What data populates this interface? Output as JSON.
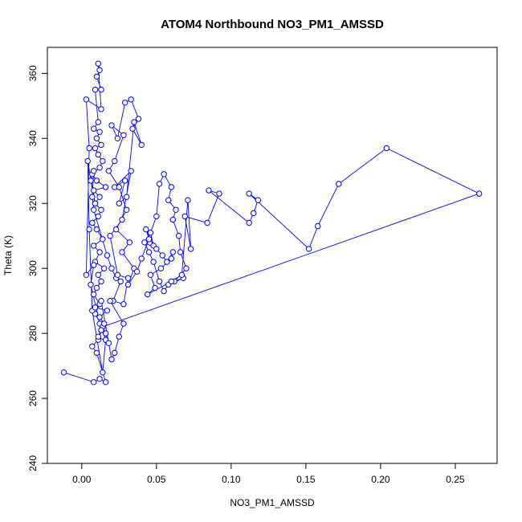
{
  "chart_data": {
    "type": "line",
    "title": "ATOM4 Northbound NO3_PM1_AMSSD",
    "xlabel": "NO3_PM1_AMSSD",
    "ylabel": "Theta (K)",
    "xlim": [
      -0.023,
      0.278
    ],
    "ylim": [
      240,
      368
    ],
    "x_ticks": [
      0.0,
      0.05,
      0.1,
      0.15,
      0.2,
      0.25
    ],
    "x_tick_labels": [
      "0.00",
      "0.05",
      "0.10",
      "0.15",
      "0.20",
      "0.25"
    ],
    "y_ticks": [
      240,
      260,
      280,
      300,
      320,
      340,
      360
    ],
    "y_tick_labels": [
      "240",
      "260",
      "280",
      "300",
      "320",
      "340",
      "360"
    ],
    "grid": false,
    "legend": "none",
    "series_color": "#0000ff",
    "marker": "open-circle",
    "series": [
      {
        "x": [
          -0.012,
          0.008,
          0.012,
          0.016,
          0.01,
          0.007,
          0.011,
          0.014,
          0.009,
          0.012,
          0.008,
          0.01,
          0.013,
          0.011,
          0.015,
          0.009,
          0.012,
          0.008,
          0.014,
          0.01,
          0.007,
          0.011,
          0.013,
          0.009,
          0.012,
          0.008,
          0.016,
          0.01,
          0.007,
          0.012,
          0.014,
          0.011,
          0.009,
          0.013,
          0.01,
          0.012,
          0.008,
          0.011,
          0.009,
          0.013,
          0.01,
          0.012,
          0.011,
          0.013,
          0.003,
          0.005,
          0.003,
          0.008,
          0.006,
          0.012,
          0.016,
          0.014,
          0.007,
          0.005,
          0.004,
          0.009,
          0.006,
          0.008,
          0.007,
          0.008,
          0.017,
          0.02,
          0.023,
          0.026,
          0.021,
          0.028,
          0.031,
          0.024,
          0.019,
          0.027,
          0.033,
          0.022,
          0.029,
          0.025,
          0.03,
          0.035,
          0.04,
          0.034,
          0.038,
          0.033,
          0.029,
          0.024,
          0.02,
          0.028,
          0.022,
          0.018,
          0.025,
          0.03,
          0.023,
          0.032,
          0.027,
          0.035,
          0.031,
          0.037,
          0.04,
          0.045,
          0.043,
          0.048,
          0.046,
          0.05,
          0.052,
          0.055,
          0.06,
          0.058,
          0.063,
          0.061,
          0.065,
          0.066,
          0.07,
          0.062,
          0.068,
          0.058,
          0.055,
          0.052,
          0.048,
          0.045,
          0.042,
          0.05,
          0.054,
          0.057,
          0.061,
          0.06,
          0.053,
          0.046,
          0.049,
          0.044,
          0.06,
          0.067,
          0.071,
          0.073,
          0.069,
          0.084,
          0.092,
          0.085,
          0.112,
          0.115,
          0.118,
          0.112,
          0.152,
          0.158,
          0.172,
          0.204,
          0.266,
          0.014,
          0.016,
          0.018,
          0.011,
          0.013,
          0.015,
          0.012,
          0.017,
          0.009,
          0.013,
          0.02,
          0.022,
          0.025,
          0.028,
          0.019
        ],
        "y": [
          268,
          265,
          266,
          265,
          274,
          276,
          278,
          282,
          286,
          289,
          292,
          294,
          296,
          298,
          300,
          302,
          305,
          307,
          309,
          312,
          314,
          316,
          318,
          320,
          322,
          324,
          325,
          327,
          329,
          331,
          333,
          335,
          337,
          338,
          340,
          342,
          343,
          345,
          355,
          355,
          359,
          361,
          363,
          349,
          352,
          337,
          298,
          301,
          295,
          283,
          278,
          268,
          287,
          312,
          333,
          320,
          327,
          330,
          322,
          318,
          304,
          300,
          297,
          296,
          290,
          289,
          297,
          298,
          310,
          315,
          330,
          325,
          327,
          320,
          322,
          345,
          338,
          343,
          346,
          352,
          351,
          340,
          344,
          341,
          333,
          330,
          325,
          318,
          312,
          308,
          305,
          300,
          295,
          299,
          303,
          309,
          312,
          307,
          311,
          316,
          326,
          329,
          325,
          321,
          318,
          315,
          310,
          305,
          300,
          296,
          297,
          295,
          293,
          296,
          302,
          305,
          308,
          306,
          304,
          302,
          305,
          303,
          300,
          298,
          294,
          292,
          296,
          298,
          321,
          306,
          316,
          314,
          323,
          324,
          314,
          317,
          321,
          323,
          306,
          313,
          326,
          337,
          323,
          282,
          280,
          277,
          279,
          281,
          283,
          285,
          287,
          288,
          290,
          272,
          274,
          279,
          283,
          290
        ],
        "path_order": "sequential"
      }
    ]
  }
}
